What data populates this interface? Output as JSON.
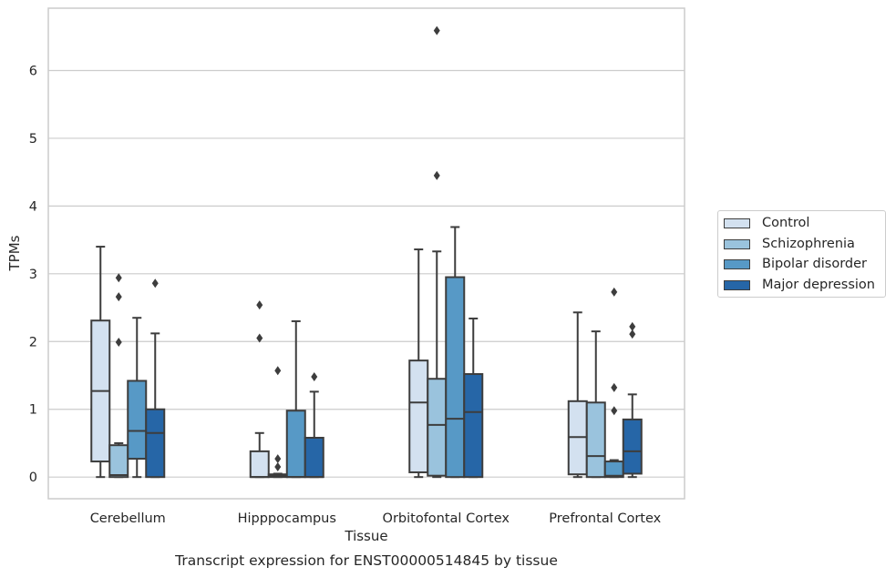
{
  "chart_data": {
    "type": "box",
    "xlabel": "Tissue",
    "ylabel": "TPMs",
    "caption": "Transcript expression for ENST00000514845 by tissue",
    "ylim": [
      -0.32,
      6.92
    ],
    "yticks": [
      0,
      1,
      2,
      3,
      4,
      5,
      6
    ],
    "grid": true,
    "legend_position": "right",
    "categories": [
      "Cerebellum",
      "Hipppocampus",
      "Orbitofontal Cortex",
      "Prefrontal Cortex"
    ],
    "series": [
      {
        "name": "Control",
        "color": "#d3e1f0",
        "boxes": [
          {
            "q1": 0.23,
            "median": 1.27,
            "q3": 2.31,
            "whisker_low": 0.0,
            "whisker_high": 3.4,
            "outliers": []
          },
          {
            "q1": 0.0,
            "median": 0.0,
            "q3": 0.38,
            "whisker_low": 0.0,
            "whisker_high": 0.65,
            "outliers": [
              2.05,
              2.54
            ]
          },
          {
            "q1": 0.07,
            "median": 1.1,
            "q3": 1.72,
            "whisker_low": 0.0,
            "whisker_high": 3.36,
            "outliers": []
          },
          {
            "q1": 0.04,
            "median": 0.59,
            "q3": 1.12,
            "whisker_low": 0.0,
            "whisker_high": 2.43,
            "outliers": []
          }
        ]
      },
      {
        "name": "Schizophrenia",
        "color": "#9ac3dd",
        "boxes": [
          {
            "q1": 0.0,
            "median": 0.03,
            "q3": 0.47,
            "whisker_low": 0.0,
            "whisker_high": 0.5,
            "outliers": [
              1.99,
              2.66,
              2.94
            ]
          },
          {
            "q1": 0.0,
            "median": 0.02,
            "q3": 0.04,
            "whisker_low": 0.0,
            "whisker_high": 0.05,
            "outliers": [
              0.15,
              0.27,
              1.57
            ]
          },
          {
            "q1": 0.02,
            "median": 0.77,
            "q3": 1.45,
            "whisker_low": 0.0,
            "whisker_high": 3.33,
            "outliers": [
              4.45,
              6.59
            ]
          },
          {
            "q1": 0.0,
            "median": 0.31,
            "q3": 1.1,
            "whisker_low": 0.0,
            "whisker_high": 2.15,
            "outliers": []
          }
        ]
      },
      {
        "name": "Bipolar disorder",
        "color": "#5799c6",
        "boxes": [
          {
            "q1": 0.27,
            "median": 0.68,
            "q3": 1.42,
            "whisker_low": 0.0,
            "whisker_high": 2.35,
            "outliers": []
          },
          {
            "q1": 0.0,
            "median": 0.0,
            "q3": 0.98,
            "whisker_low": 0.0,
            "whisker_high": 2.3,
            "outliers": []
          },
          {
            "q1": 0.0,
            "median": 0.86,
            "q3": 2.95,
            "whisker_low": 0.0,
            "whisker_high": 3.69,
            "outliers": []
          },
          {
            "q1": 0.0,
            "median": 0.02,
            "q3": 0.23,
            "whisker_low": 0.0,
            "whisker_high": 0.25,
            "outliers": [
              0.98,
              1.32,
              2.73
            ]
          }
        ]
      },
      {
        "name": "Major depression",
        "color": "#2666a7",
        "boxes": [
          {
            "q1": 0.0,
            "median": 0.65,
            "q3": 1.0,
            "whisker_low": 0.0,
            "whisker_high": 2.12,
            "outliers": [
              2.86
            ]
          },
          {
            "q1": 0.0,
            "median": 0.0,
            "q3": 0.58,
            "whisker_low": 0.0,
            "whisker_high": 1.26,
            "outliers": [
              1.48
            ]
          },
          {
            "q1": 0.0,
            "median": 0.96,
            "q3": 1.52,
            "whisker_low": 0.0,
            "whisker_high": 2.34,
            "outliers": []
          },
          {
            "q1": 0.05,
            "median": 0.38,
            "q3": 0.85,
            "whisker_low": 0.0,
            "whisker_high": 1.22,
            "outliers": [
              2.11,
              2.22
            ]
          }
        ]
      }
    ]
  }
}
